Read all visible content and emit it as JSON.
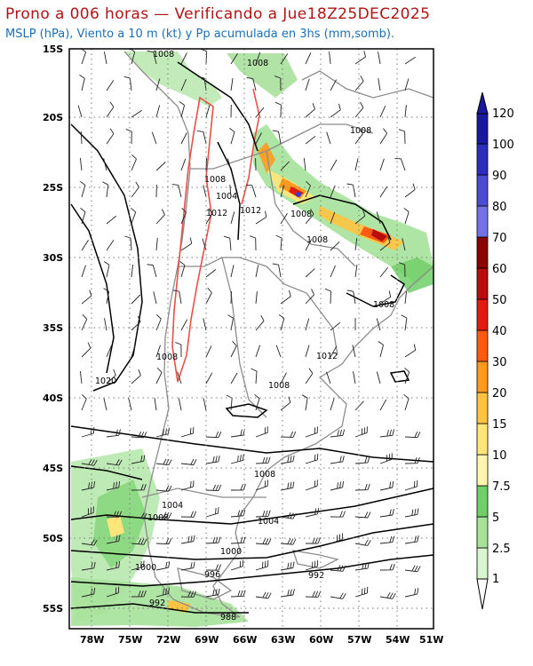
{
  "header": {
    "title": "Prono a 006 horas — Verificando a Jue18Z25DEC2025",
    "subtitle": "MSLP (hPa), Viento a 10 m (kt) y Pp acumulada en 3hs (mm,somb)."
  },
  "axes": {
    "lat_labels": [
      "15S",
      "20S",
      "25S",
      "30S",
      "35S",
      "40S",
      "45S",
      "50S",
      "55S"
    ],
    "lon_labels": [
      "78W",
      "75W",
      "72W",
      "69W",
      "66W",
      "63W",
      "60W",
      "57W",
      "54W",
      "51W"
    ]
  },
  "isobar_labels": [
    "1008",
    "1008",
    "1008",
    "1008",
    "1004",
    "1012",
    "1012",
    "1008",
    "1008",
    "1008",
    "1008",
    "1012",
    "1020",
    "1008",
    "1008",
    "1004",
    "1008",
    "1004",
    "1000",
    "996",
    "992",
    "1000",
    "992",
    "988"
  ],
  "colorbar": {
    "labels": [
      "1",
      "2.5",
      "5",
      "7.5",
      "10",
      "15",
      "20",
      "30",
      "40",
      "50",
      "60",
      "70",
      "80",
      "90",
      "100",
      "120"
    ],
    "colors": [
      "#ffffff",
      "#d8f5d0",
      "#a6e29a",
      "#71cf68",
      "#fff6ad",
      "#ffe57a",
      "#ffc342",
      "#ff9a1f",
      "#ff5a12",
      "#e01c10",
      "#b80d0d",
      "#8a0404",
      "#7373e6",
      "#4c4cd0",
      "#2e2ebd",
      "#19199e"
    ]
  },
  "colors": {
    "coast": "#8c8c8c",
    "isobar": "#000000",
    "highlight_contour": "#e8504a"
  }
}
